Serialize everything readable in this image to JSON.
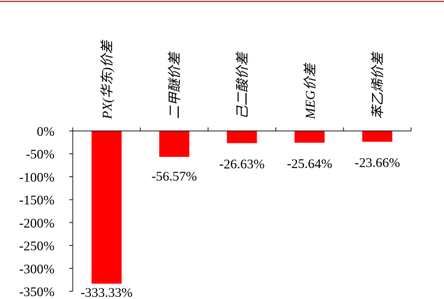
{
  "chart_data": {
    "type": "bar",
    "categories": [
      "PX(华东)价差",
      "二甲醚价差",
      "己二酸价差",
      "MEG价差",
      "苯乙烯价差"
    ],
    "values": [
      -333.33,
      -56.57,
      -26.63,
      -25.64,
      -23.66
    ],
    "data_labels": [
      "-333.33%",
      "-56.57%",
      "-26.63%",
      "-25.64%",
      "-23.66%"
    ],
    "yticks": [
      0,
      -50,
      -100,
      -150,
      -200,
      -250,
      -300,
      -350
    ],
    "ytick_labels": [
      "0%",
      "-50%",
      "-100%",
      "-150%",
      "-200%",
      "-250%",
      "-300%",
      "-350%"
    ],
    "ylim": [
      -350,
      0
    ],
    "grid": false,
    "title": "",
    "xlabel": "",
    "ylabel": "",
    "bar_color": "#ff0000",
    "top_rule_color": "#c0504d"
  }
}
